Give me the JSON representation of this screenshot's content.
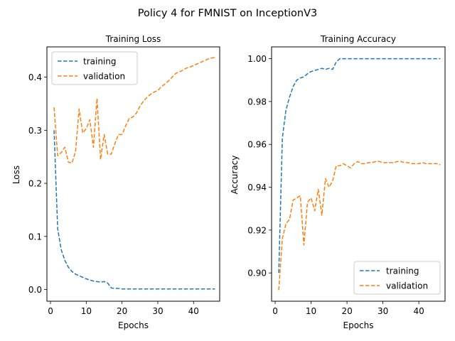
{
  "figure": {
    "title": "Policy 4 for FMNIST on InceptionV3"
  },
  "chart_data": [
    {
      "type": "line",
      "title": "Training Loss",
      "xlabel": "Epochs",
      "ylabel": "Loss",
      "xlim": [
        -1,
        47.3
      ],
      "ylim": [
        -0.022,
        0.457
      ],
      "xticks": [
        0,
        10,
        20,
        30,
        40
      ],
      "xtick_labels": [
        "0",
        "10",
        "20",
        "30",
        "40"
      ],
      "yticks": [
        0.0,
        0.1,
        0.2,
        0.3,
        0.4
      ],
      "ytick_labels": [
        "0.0",
        "0.1",
        "0.2",
        "0.3",
        "0.4"
      ],
      "legend": "upper left",
      "grid": false,
      "series": [
        {
          "name": "training",
          "color": "#1f77b4",
          "x": [
            1,
            2,
            3,
            4,
            5,
            6,
            7,
            8,
            9,
            10,
            11,
            12,
            13,
            14,
            15,
            16,
            17,
            18,
            19,
            20,
            21,
            22,
            23,
            24,
            25,
            26,
            27,
            28,
            29,
            30,
            31,
            32,
            33,
            34,
            35,
            36,
            37,
            38,
            39,
            40,
            41,
            42,
            43,
            44,
            45,
            46
          ],
          "y": [
            0.3,
            0.115,
            0.075,
            0.055,
            0.042,
            0.034,
            0.029,
            0.026,
            0.023,
            0.02,
            0.018,
            0.016,
            0.015,
            0.014,
            0.015,
            0.012,
            0.003,
            0.002,
            0.002,
            0.001,
            0.001,
            0.001,
            0.001,
            0.001,
            0.001,
            0.001,
            0.001,
            0.001,
            0.001,
            0.001,
            0.001,
            0.001,
            0.001,
            0.001,
            0.001,
            0.001,
            0.001,
            0.001,
            0.001,
            0.001,
            0.001,
            0.001,
            0.001,
            0.001,
            0.001,
            0.001
          ]
        },
        {
          "name": "validation",
          "color": "#ff7f0e",
          "x": [
            1,
            2,
            3,
            4,
            5,
            6,
            7,
            8,
            9,
            10,
            11,
            12,
            13,
            14,
            15,
            16,
            17,
            18,
            19,
            20,
            21,
            22,
            23,
            24,
            25,
            26,
            27,
            28,
            29,
            30,
            31,
            32,
            33,
            34,
            35,
            36,
            37,
            38,
            39,
            40,
            41,
            42,
            43,
            44,
            45,
            46
          ],
          "y": [
            0.343,
            0.252,
            0.258,
            0.268,
            0.24,
            0.238,
            0.26,
            0.34,
            0.295,
            0.303,
            0.32,
            0.268,
            0.36,
            0.245,
            0.292,
            0.255,
            0.255,
            0.275,
            0.292,
            0.292,
            0.308,
            0.322,
            0.325,
            0.332,
            0.345,
            0.355,
            0.362,
            0.368,
            0.372,
            0.375,
            0.382,
            0.387,
            0.393,
            0.4,
            0.407,
            0.41,
            0.413,
            0.417,
            0.419,
            0.422,
            0.425,
            0.428,
            0.431,
            0.434,
            0.436,
            0.437
          ]
        }
      ]
    },
    {
      "type": "line",
      "title": "Training Accuracy",
      "xlabel": "Epochs",
      "ylabel": "Accuracy",
      "xlim": [
        -1,
        47.3
      ],
      "ylim": [
        0.8868,
        1.0055
      ],
      "xticks": [
        0,
        10,
        20,
        30,
        40
      ],
      "xtick_labels": [
        "0",
        "10",
        "20",
        "30",
        "40"
      ],
      "yticks": [
        0.9,
        0.92,
        0.94,
        0.96,
        0.98,
        1.0
      ],
      "ytick_labels": [
        "0.90",
        "0.92",
        "0.94",
        "0.96",
        "0.98",
        "1.00"
      ],
      "legend": "lower right",
      "grid": false,
      "series": [
        {
          "name": "training",
          "color": "#1f77b4",
          "x": [
            1,
            2,
            3,
            4,
            5,
            6,
            7,
            8,
            9,
            10,
            11,
            12,
            13,
            14,
            15,
            16,
            17,
            18,
            19,
            20,
            21,
            22,
            23,
            24,
            25,
            26,
            27,
            28,
            29,
            30,
            31,
            32,
            33,
            34,
            35,
            36,
            37,
            38,
            39,
            40,
            41,
            42,
            43,
            44,
            45,
            46
          ],
          "y": [
            0.9,
            0.963,
            0.976,
            0.982,
            0.987,
            0.99,
            0.991,
            0.9915,
            0.993,
            0.994,
            0.9945,
            0.995,
            0.9955,
            0.995,
            0.9955,
            0.995,
            0.9985,
            1.0,
            1.0,
            1.0,
            1.0,
            1.0,
            1.0,
            1.0,
            1.0,
            1.0,
            1.0,
            1.0,
            1.0,
            1.0,
            1.0,
            1.0,
            1.0,
            1.0,
            1.0,
            1.0,
            1.0,
            1.0,
            1.0,
            1.0,
            1.0,
            1.0,
            1.0,
            1.0,
            1.0,
            1.0
          ]
        },
        {
          "name": "validation",
          "color": "#ff7f0e",
          "x": [
            1,
            2,
            3,
            4,
            5,
            6,
            7,
            8,
            9,
            10,
            11,
            12,
            13,
            14,
            15,
            16,
            17,
            18,
            19,
            20,
            21,
            22,
            23,
            24,
            25,
            26,
            27,
            28,
            29,
            30,
            31,
            32,
            33,
            34,
            35,
            36,
            37,
            38,
            39,
            40,
            41,
            42,
            43,
            44,
            45,
            46
          ],
          "y": [
            0.892,
            0.916,
            0.923,
            0.925,
            0.934,
            0.935,
            0.936,
            0.913,
            0.933,
            0.935,
            0.929,
            0.939,
            0.927,
            0.944,
            0.94,
            0.943,
            0.95,
            0.95,
            0.951,
            0.95,
            0.949,
            0.951,
            0.952,
            0.951,
            0.951,
            0.9515,
            0.9515,
            0.952,
            0.952,
            0.9515,
            0.9515,
            0.9515,
            0.9515,
            0.952,
            0.952,
            0.9515,
            0.9515,
            0.951,
            0.951,
            0.951,
            0.9515,
            0.951,
            0.951,
            0.951,
            0.951,
            0.9505
          ]
        }
      ]
    }
  ]
}
